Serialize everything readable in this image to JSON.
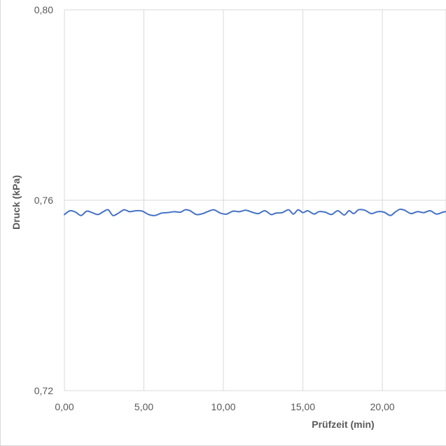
{
  "chart_data": {
    "type": "line",
    "xlabel": "Prüfzeit (min)",
    "ylabel": "Druck (kPa)",
    "xlim": [
      0,
      24
    ],
    "ylim": [
      0.72,
      0.8
    ],
    "x_ticks": [
      "0,00",
      "5,00",
      "10,00",
      "15,00",
      "20,00"
    ],
    "x_tick_values": [
      0,
      5,
      10,
      15,
      20
    ],
    "y_ticks": [
      "0,72",
      "0,76",
      "0,80"
    ],
    "y_tick_values": [
      0.72,
      0.76,
      0.8
    ],
    "grid": true,
    "legend": "none",
    "series": [
      {
        "color": "#4472c4",
        "x": [
          0.0,
          0.35,
          0.7,
          1.05,
          1.4,
          1.75,
          2.1,
          2.45,
          2.75,
          3.05,
          3.4,
          3.75,
          4.1,
          4.5,
          4.9,
          5.3,
          5.7,
          6.1,
          6.5,
          6.9,
          7.3,
          7.6,
          7.9,
          8.3,
          8.7,
          9.0,
          9.4,
          9.8,
          10.2,
          10.6,
          11.0,
          11.4,
          11.8,
          12.2,
          12.6,
          13.0,
          13.3,
          13.7,
          14.1,
          14.4,
          14.7,
          15.0,
          15.3,
          15.7,
          16.0,
          16.4,
          16.8,
          17.2,
          17.6,
          17.9,
          18.2,
          18.5,
          18.9,
          19.3,
          19.7,
          20.1,
          20.5,
          20.8,
          21.1,
          21.4,
          21.8,
          22.2,
          22.6,
          23.0,
          23.4,
          23.8,
          24.0
        ],
        "y": [
          0.757,
          0.7578,
          0.7575,
          0.7568,
          0.7577,
          0.7574,
          0.757,
          0.7576,
          0.758,
          0.7568,
          0.7573,
          0.758,
          0.7576,
          0.7578,
          0.7577,
          0.757,
          0.7568,
          0.7573,
          0.7574,
          0.7576,
          0.7575,
          0.758,
          0.7578,
          0.757,
          0.7572,
          0.7576,
          0.758,
          0.7573,
          0.7571,
          0.7577,
          0.7576,
          0.7579,
          0.7575,
          0.7572,
          0.7578,
          0.757,
          0.7573,
          0.7574,
          0.758,
          0.7571,
          0.758,
          0.7574,
          0.7578,
          0.7571,
          0.7576,
          0.7575,
          0.757,
          0.7578,
          0.7569,
          0.7578,
          0.7572,
          0.758,
          0.7579,
          0.7572,
          0.7576,
          0.7575,
          0.7568,
          0.7575,
          0.7581,
          0.7579,
          0.7572,
          0.7576,
          0.7574,
          0.7578,
          0.7571,
          0.7575,
          0.7576
        ]
      }
    ]
  }
}
